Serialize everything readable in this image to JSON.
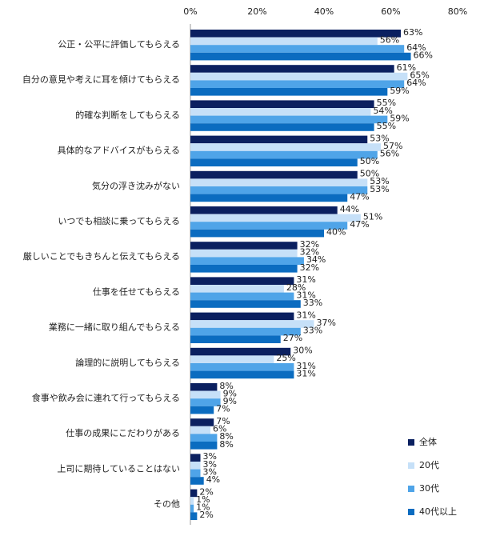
{
  "chart_data": {
    "type": "bar",
    "orientation": "horizontal",
    "categories": [
      "公正・公平に評価してもらえる",
      "自分の意見や考えに耳を傾けてもらえる",
      "的確な判断をしてもらえる",
      "具体的なアドバイスがもらえる",
      "気分の浮き沈みがない",
      "いつでも相談に乗ってもらえる",
      "厳しいことでもきちんと伝えてもらえる",
      "仕事を任せてもらえる",
      "業務に一緒に取り組んでもらえる",
      "論理的に説明してもらえる",
      "食事や飲み会に連れて行ってもらえる",
      "仕事の成果にこだわりがある",
      "上司に期待していることはない",
      "その他"
    ],
    "series": [
      {
        "name": "全体",
        "color": "#0b2060",
        "values": [
          63,
          61,
          55,
          53,
          50,
          44,
          32,
          31,
          31,
          30,
          8,
          7,
          3,
          2
        ],
        "value_labels": [
          "63%",
          "61%",
          "55%",
          "53%",
          "50%",
          "44%",
          "32%",
          "31%",
          "31%",
          "30%",
          "8%",
          "7%",
          "3%",
          "2%"
        ]
      },
      {
        "name": "20代",
        "color": "#c6e0f8",
        "values": [
          56,
          65,
          54,
          57,
          53,
          51,
          32,
          28,
          37,
          25,
          9,
          6,
          3,
          1
        ],
        "value_labels": [
          "56%",
          "65%",
          "54%",
          "57%",
          "53%",
          "51%",
          "32%",
          "28%",
          "37%",
          "25%",
          "9%",
          "6%",
          "3%",
          "1%"
        ]
      },
      {
        "name": "30代",
        "color": "#4fa4e8",
        "values": [
          64,
          64,
          59,
          56,
          53,
          47,
          34,
          31,
          33,
          31,
          9,
          8,
          3,
          1
        ],
        "value_labels": [
          "64%",
          "64%",
          "59%",
          "56%",
          "53%",
          "47%",
          "34%",
          "31%",
          "33%",
          "31%",
          "9%",
          "8%",
          "3%",
          "1%"
        ]
      },
      {
        "name": "40代以上",
        "color": "#0b6cc0",
        "values": [
          66,
          59,
          55,
          50,
          47,
          40,
          32,
          33,
          27,
          31,
          7,
          8,
          4,
          2
        ],
        "value_labels": [
          "66%",
          "59%",
          "55%",
          "50%",
          "47%",
          "40%",
          "32%",
          "33%",
          "27%",
          "31%",
          "7%",
          "8%",
          "4%",
          "2%"
        ]
      }
    ],
    "xlim": [
      0,
      80
    ],
    "xticks": [
      {
        "value": 0,
        "label": "0%"
      },
      {
        "value": 20,
        "label": "20%"
      },
      {
        "value": 40,
        "label": "40%"
      },
      {
        "value": 60,
        "label": "60%"
      },
      {
        "value": 80,
        "label": "80%"
      }
    ],
    "legend": "bottom-right"
  }
}
